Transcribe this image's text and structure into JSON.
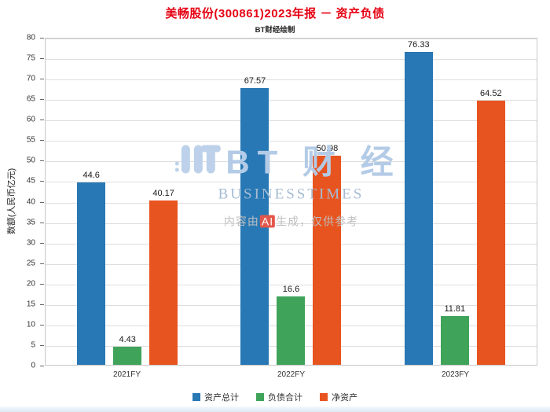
{
  "title": "美畅股份(300861)2023年报 － 资产负债",
  "subtitle": "BT财经绘制",
  "chart_data": {
    "type": "bar",
    "categories": [
      "2021FY",
      "2022FY",
      "2023FY"
    ],
    "series": [
      {
        "name": "资产总计",
        "color": "#2878b5",
        "values": [
          44.6,
          67.57,
          76.33
        ]
      },
      {
        "name": "负债合计",
        "color": "#3fa45a",
        "values": [
          4.43,
          16.6,
          11.81
        ]
      },
      {
        "name": "净资产",
        "color": "#e8541f",
        "values": [
          40.17,
          50.98,
          64.52
        ]
      }
    ],
    "title": "美畅股份(300861)2023年报 － 资产负债",
    "xlabel": "",
    "ylabel": "数额(人民币亿元)",
    "ylim": [
      0,
      80
    ],
    "ytick_step": 5,
    "grid": true,
    "legend_position": "bottom"
  },
  "watermark": {
    "brand": "BT 财 经",
    "brand_en": "BUSINESSTIMES",
    "disclaimer": "内容由AI生成，仅供参考",
    "disclaimer_prefix": "内容由",
    "disclaimer_ai": "AI",
    "disclaimer_suffix": "生成，仅供参考"
  },
  "colors": {
    "title": "#e60012",
    "grid": "#dedede",
    "axis_border": "#c8c8c8",
    "watermark_blue": "#b3cbe6",
    "ai_badge": "#e2574b"
  }
}
